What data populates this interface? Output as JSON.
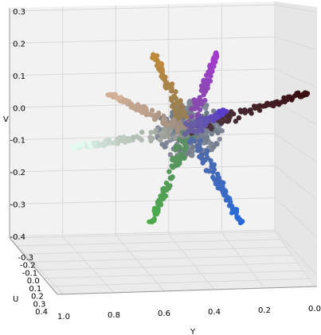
{
  "chart_data": {
    "type": "scatter",
    "projection": "3d",
    "title": "",
    "xlabel": "Y",
    "ylabel": "U",
    "zlabel": "V",
    "xlim": [
      1.0,
      0.0
    ],
    "ylim": [
      -0.35,
      0.4
    ],
    "zlim": [
      -0.4,
      0.3
    ],
    "x_ticks": [
      "1.0",
      "0.8",
      "0.6",
      "0.4",
      "0.2",
      "0.0"
    ],
    "y_ticks": [
      "-0.3",
      "-0.2",
      "-0.1",
      "0.0",
      "0.1",
      "0.2",
      "0.3",
      "0.4"
    ],
    "z_ticks": [
      "0.3",
      "0.2",
      "0.1",
      "0.0",
      "-0.1",
      "-0.2",
      "-0.3",
      "-0.4"
    ],
    "grid": true,
    "marker_colors": "each point colored by its own YUV color",
    "arms": [
      {
        "direction": "light cyan / pale",
        "end_y": 0.97,
        "end_v": -0.125,
        "color_from": "#8c8c84",
        "color_to": "#e4fbf0"
      },
      {
        "direction": "dark red-brown",
        "end_y": 0.03,
        "end_v": 0.045,
        "color_from": "#4e3c46",
        "color_to": "#3a0f12"
      },
      {
        "direction": "purple",
        "end_y": 0.39,
        "end_v": 0.17,
        "color_from": "#7c52a0",
        "color_to": "#a23ccc"
      },
      {
        "direction": "orange-brown",
        "end_y": 0.64,
        "end_v": 0.165,
        "color_from": "#8c7c5a",
        "color_to": "#c08a3c"
      },
      {
        "direction": "tan",
        "end_y": 0.82,
        "end_v": 0.04,
        "color_from": "#9a8a7c",
        "color_to": "#d4b098"
      },
      {
        "direction": "green",
        "end_y": 0.65,
        "end_v": -0.36,
        "color_from": "#5e8a68",
        "color_to": "#4caa4c"
      },
      {
        "direction": "blue",
        "end_y": 0.29,
        "end_v": -0.36,
        "color_from": "#5a6aa0",
        "color_to": "#2a6ad6"
      },
      {
        "direction": "violet-blue",
        "end_y": 0.36,
        "end_v": -0.01,
        "color_from": "#6a62a0",
        "color_to": "#5a3cc8"
      }
    ]
  }
}
